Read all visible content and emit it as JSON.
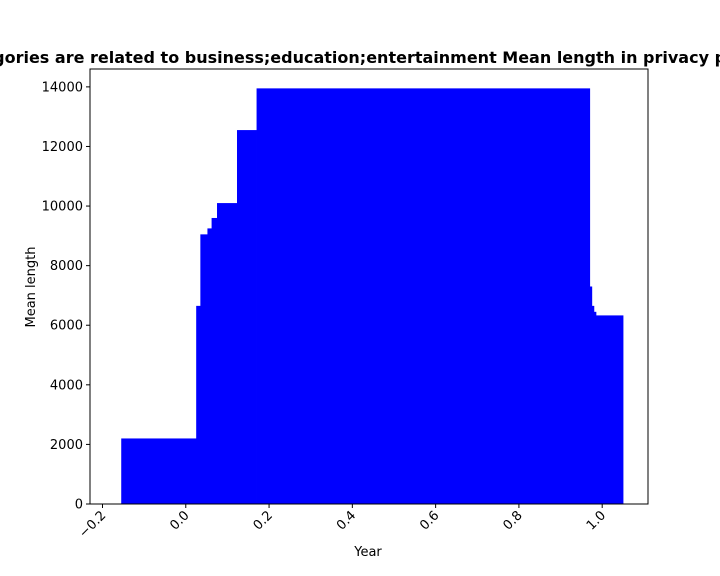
{
  "chart_data": {
    "type": "bar",
    "title": "Categories are related to business;education;entertainment Mean length in privacy policy",
    "xlabel": "Year",
    "ylabel": "Mean length",
    "xlim": [
      -0.23,
      1.11
    ],
    "ylim": [
      0,
      14600
    ],
    "xticks": [
      -0.2,
      0.0,
      0.2,
      0.4,
      0.6,
      0.8,
      1.0
    ],
    "xtick_labels": [
      "−0.2",
      "0.0",
      "0.2",
      "0.4",
      "0.6",
      "0.8",
      "1.0"
    ],
    "yticks": [
      0,
      2000,
      4000,
      6000,
      8000,
      10000,
      12000,
      14000
    ],
    "ytick_labels": [
      "0",
      "2000",
      "4000",
      "6000",
      "8000",
      "10000",
      "12000",
      "14000"
    ],
    "bar_color": "#0000ff",
    "grid": false,
    "bars": [
      {
        "x0": -0.155,
        "x1": 0.025,
        "value": 2200
      },
      {
        "x0": 0.025,
        "x1": 0.035,
        "value": 6650
      },
      {
        "x0": 0.035,
        "x1": 0.052,
        "value": 9050
      },
      {
        "x0": 0.052,
        "x1": 0.062,
        "value": 9250
      },
      {
        "x0": 0.062,
        "x1": 0.075,
        "value": 9600
      },
      {
        "x0": 0.075,
        "x1": 0.123,
        "value": 10100
      },
      {
        "x0": 0.123,
        "x1": 0.17,
        "value": 12550
      },
      {
        "x0": 0.17,
        "x1": 0.97,
        "value": 13950
      },
      {
        "x0": 0.97,
        "x1": 0.975,
        "value": 7300
      },
      {
        "x0": 0.975,
        "x1": 0.98,
        "value": 6650
      },
      {
        "x0": 0.98,
        "x1": 0.985,
        "value": 6450
      },
      {
        "x0": 0.985,
        "x1": 1.05,
        "value": 6330
      }
    ]
  }
}
